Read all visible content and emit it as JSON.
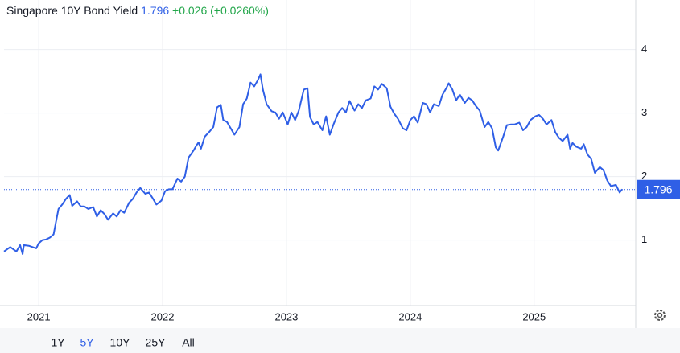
{
  "chart_data": {
    "type": "line",
    "title": "Singapore 10Y Bond Yield",
    "current_value": 1.796,
    "change": "+0.026 (+0.0260%)",
    "color": "#2f5fe6",
    "grid": true,
    "xlim": [
      2020.72,
      2025.82
    ],
    "xticks": [
      2021,
      2022,
      2023,
      2024,
      2025
    ],
    "ylim": [
      -0.03,
      4.78
    ],
    "yticks": [
      1,
      2,
      3,
      4
    ],
    "x": [
      2020.72,
      2020.77,
      2020.82,
      2020.85,
      2020.87,
      2020.88,
      2020.92,
      2020.95,
      2020.98,
      2021.0,
      2021.03,
      2021.06,
      2021.09,
      2021.12,
      2021.14,
      2021.16,
      2021.19,
      2021.22,
      2021.25,
      2021.27,
      2021.31,
      2021.34,
      2021.37,
      2021.4,
      2021.44,
      2021.47,
      2021.5,
      2021.53,
      2021.56,
      2021.6,
      2021.63,
      2021.66,
      2021.69,
      2021.73,
      2021.76,
      2021.79,
      2021.82,
      2021.86,
      2021.89,
      2021.92,
      2021.95,
      2021.99,
      2022.02,
      2022.05,
      2022.08,
      2022.12,
      2022.15,
      2022.18,
      2022.21,
      2022.25,
      2022.27,
      2022.29,
      2022.31,
      2022.34,
      2022.38,
      2022.41,
      2022.44,
      2022.47,
      2022.49,
      2022.52,
      2022.55,
      2022.58,
      2022.62,
      2022.65,
      2022.68,
      2022.71,
      2022.74,
      2022.77,
      2022.79,
      2022.81,
      2022.84,
      2022.88,
      2022.91,
      2022.94,
      2022.97,
      2023.01,
      2023.04,
      2023.07,
      2023.1,
      2023.14,
      2023.17,
      2023.19,
      2023.22,
      2023.25,
      2023.29,
      2023.32,
      2023.35,
      2023.38,
      2023.42,
      2023.45,
      2023.48,
      2023.51,
      2023.55,
      2023.58,
      2023.61,
      2023.64,
      2023.68,
      2023.71,
      2023.74,
      2023.77,
      2023.81,
      2023.84,
      2023.87,
      2023.9,
      2023.94,
      2023.97,
      2024.0,
      2024.03,
      2024.06,
      2024.1,
      2024.13,
      2024.16,
      2024.19,
      2024.23,
      2024.26,
      2024.29,
      2024.31,
      2024.34,
      2024.37,
      2024.4,
      2024.44,
      2024.47,
      2024.5,
      2024.53,
      2024.56,
      2024.6,
      2024.63,
      2024.66,
      2024.69,
      2024.71,
      2024.75,
      2024.78,
      2024.81,
      2024.84,
      2024.88,
      2024.91,
      2024.94,
      2024.97,
      2025.01,
      2025.04,
      2025.07,
      2025.1,
      2025.14,
      2025.17,
      2025.2,
      2025.23,
      2025.27,
      2025.29,
      2025.31,
      2025.34,
      2025.38,
      2025.4,
      2025.43,
      2025.46,
      2025.49,
      2025.53,
      2025.56,
      2025.59,
      2025.62,
      2025.66,
      2025.69,
      2025.71
    ],
    "values": [
      0.82,
      0.89,
      0.82,
      0.92,
      0.78,
      0.92,
      0.91,
      0.89,
      0.87,
      0.95,
      1.0,
      1.01,
      1.04,
      1.09,
      1.29,
      1.49,
      1.56,
      1.65,
      1.71,
      1.54,
      1.61,
      1.53,
      1.53,
      1.49,
      1.52,
      1.37,
      1.47,
      1.41,
      1.32,
      1.42,
      1.37,
      1.47,
      1.43,
      1.59,
      1.65,
      1.75,
      1.82,
      1.73,
      1.75,
      1.66,
      1.56,
      1.62,
      1.77,
      1.8,
      1.8,
      1.97,
      1.92,
      2.0,
      2.3,
      2.41,
      2.48,
      2.54,
      2.44,
      2.63,
      2.71,
      2.78,
      3.09,
      3.13,
      2.89,
      2.86,
      2.76,
      2.66,
      2.78,
      3.14,
      3.23,
      3.48,
      3.42,
      3.52,
      3.61,
      3.37,
      3.14,
      3.03,
      3.01,
      2.91,
      3.01,
      2.82,
      3.01,
      2.89,
      3.04,
      3.37,
      3.39,
      2.94,
      2.82,
      2.86,
      2.73,
      2.95,
      2.66,
      2.82,
      3.01,
      3.08,
      3.01,
      3.19,
      3.04,
      3.14,
      3.08,
      3.2,
      3.23,
      3.42,
      3.37,
      3.46,
      3.39,
      3.1,
      2.99,
      2.91,
      2.76,
      2.73,
      2.89,
      2.95,
      2.85,
      3.16,
      3.14,
      3.01,
      3.14,
      3.11,
      3.29,
      3.39,
      3.47,
      3.37,
      3.2,
      3.29,
      3.16,
      3.24,
      3.2,
      3.11,
      3.04,
      2.78,
      2.86,
      2.76,
      2.46,
      2.41,
      2.63,
      2.81,
      2.82,
      2.82,
      2.85,
      2.73,
      2.78,
      2.89,
      2.95,
      2.97,
      2.91,
      2.82,
      2.89,
      2.7,
      2.61,
      2.56,
      2.66,
      2.44,
      2.53,
      2.47,
      2.44,
      2.51,
      2.35,
      2.28,
      2.06,
      2.15,
      2.1,
      1.94,
      1.85,
      1.87,
      1.75,
      1.8
    ]
  },
  "controls": {
    "ranges": [
      "1Y",
      "5Y",
      "10Y",
      "25Y",
      "All"
    ],
    "active": 1
  }
}
